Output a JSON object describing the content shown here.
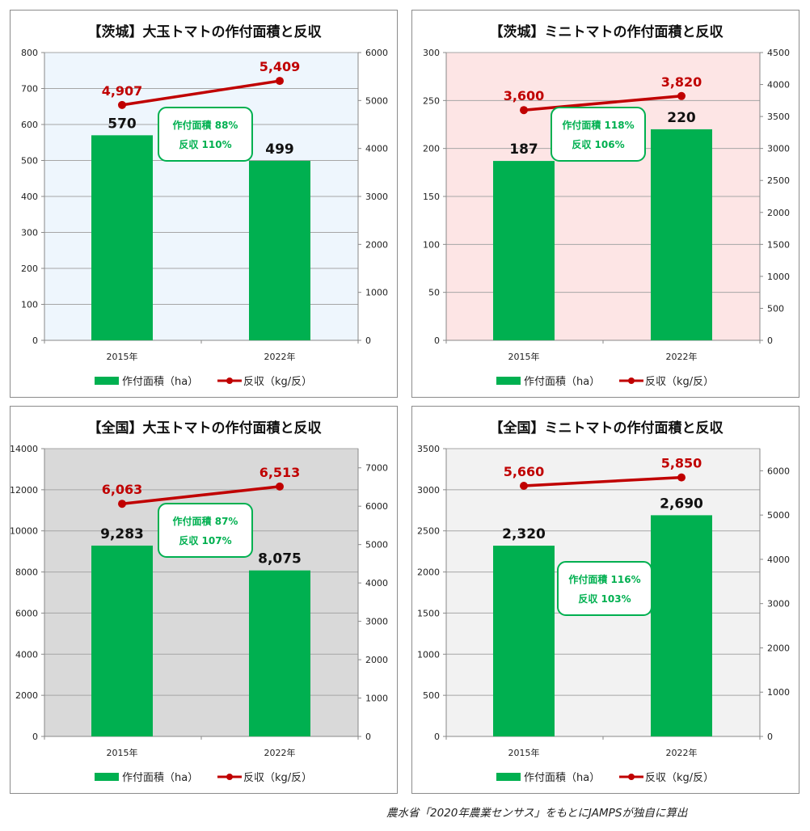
{
  "colors": {
    "bar": "#00b050",
    "line": "#c00000",
    "callout_border": "#00b050",
    "callout_text": "#00b050",
    "value_label": "#111111",
    "gridline": "#a6a6a6"
  },
  "source_note": "農水省「2020年農業センサス」をもとにJAMPSが独自に算出",
  "chart_data": [
    {
      "type": "bar",
      "title": "【茨城】大玉トマトの作付面積と反収",
      "categories": [
        "2015年",
        "2022年"
      ],
      "plot_background": "#eef6fd",
      "series": [
        {
          "name": "作付面積（ha）",
          "type": "bar",
          "axis": "left",
          "values": [
            570,
            499
          ],
          "labels": [
            "570",
            "499"
          ]
        },
        {
          "name": "反収（kg/反）",
          "type": "line",
          "axis": "right",
          "values": [
            4907,
            5409
          ],
          "labels": [
            "4,907",
            "5,409"
          ]
        }
      ],
      "y_left": {
        "min": 0,
        "max": 800,
        "ticks": [
          0,
          100,
          200,
          300,
          400,
          500,
          600,
          700,
          800
        ]
      },
      "y_right": {
        "min": 0,
        "max": 6000,
        "ticks": [
          0,
          1000,
          2000,
          3000,
          4000,
          5000,
          6000
        ]
      },
      "callout": {
        "line1": "作付面積 88%",
        "line2": "反収 110%"
      },
      "legend": "bottom",
      "grid": true
    },
    {
      "type": "bar",
      "title": "【茨城】ミニトマトの作付面積と反収",
      "categories": [
        "2015年",
        "2022年"
      ],
      "plot_background": "#fde5e5",
      "series": [
        {
          "name": "作付面積（ha）",
          "type": "bar",
          "axis": "left",
          "values": [
            187,
            220
          ],
          "labels": [
            "187",
            "220"
          ]
        },
        {
          "name": "反収（kg/反）",
          "type": "line",
          "axis": "right",
          "values": [
            3600,
            3820
          ],
          "labels": [
            "3,600",
            "3,820"
          ]
        }
      ],
      "y_left": {
        "min": 0,
        "max": 300,
        "ticks": [
          0,
          50,
          100,
          150,
          200,
          250,
          300
        ]
      },
      "y_right": {
        "min": 0,
        "max": 4500,
        "ticks": [
          0,
          500,
          1000,
          1500,
          2000,
          2500,
          3000,
          3500,
          4000,
          4500
        ]
      },
      "callout": {
        "line1": "作付面積 118%",
        "line2": "反収 106%"
      },
      "legend": "bottom",
      "grid": true
    },
    {
      "type": "bar",
      "title": "【全国】大玉トマトの作付面積と反収",
      "categories": [
        "2015年",
        "2022年"
      ],
      "plot_background": "#d9d9d9",
      "series": [
        {
          "name": "作付面積（ha）",
          "type": "bar",
          "axis": "left",
          "values": [
            9283,
            8075
          ],
          "labels": [
            "9,283",
            "8,075"
          ]
        },
        {
          "name": "反収（kg/反）",
          "type": "line",
          "axis": "right",
          "values": [
            6063,
            6513
          ],
          "labels": [
            "6,063",
            "6,513"
          ]
        }
      ],
      "y_left": {
        "min": 0,
        "max": 14000,
        "ticks": [
          0,
          2000,
          4000,
          6000,
          8000,
          10000,
          12000,
          14000
        ]
      },
      "y_right": {
        "min": 0,
        "max": 7500,
        "ticks": [
          0,
          1000,
          2000,
          3000,
          4000,
          5000,
          6000,
          7000
        ]
      },
      "callout": {
        "line1": "作付面積 87%",
        "line2": "反収 107%"
      },
      "legend": "bottom",
      "grid": true
    },
    {
      "type": "bar",
      "title": "【全国】ミニトマトの作付面積と反収",
      "categories": [
        "2015年",
        "2022年"
      ],
      "plot_background": "#f2f2f2",
      "series": [
        {
          "name": "作付面積（ha）",
          "type": "bar",
          "axis": "left",
          "values": [
            2320,
            2690
          ],
          "labels": [
            "2,320",
            "2,690"
          ]
        },
        {
          "name": "反収（kg/反）",
          "type": "line",
          "axis": "right",
          "values": [
            5660,
            5850
          ],
          "labels": [
            "5,660",
            "5,850"
          ]
        }
      ],
      "y_left": {
        "min": 0,
        "max": 3500,
        "ticks": [
          0,
          500,
          1000,
          1500,
          2000,
          2500,
          3000,
          3500
        ]
      },
      "y_right": {
        "min": 0,
        "max": 6500,
        "ticks": [
          0,
          1000,
          2000,
          3000,
          4000,
          5000,
          6000
        ]
      },
      "callout": {
        "line1": "作付面積 116%",
        "line2": "反収 103%"
      },
      "legend": "bottom",
      "grid": true
    }
  ]
}
